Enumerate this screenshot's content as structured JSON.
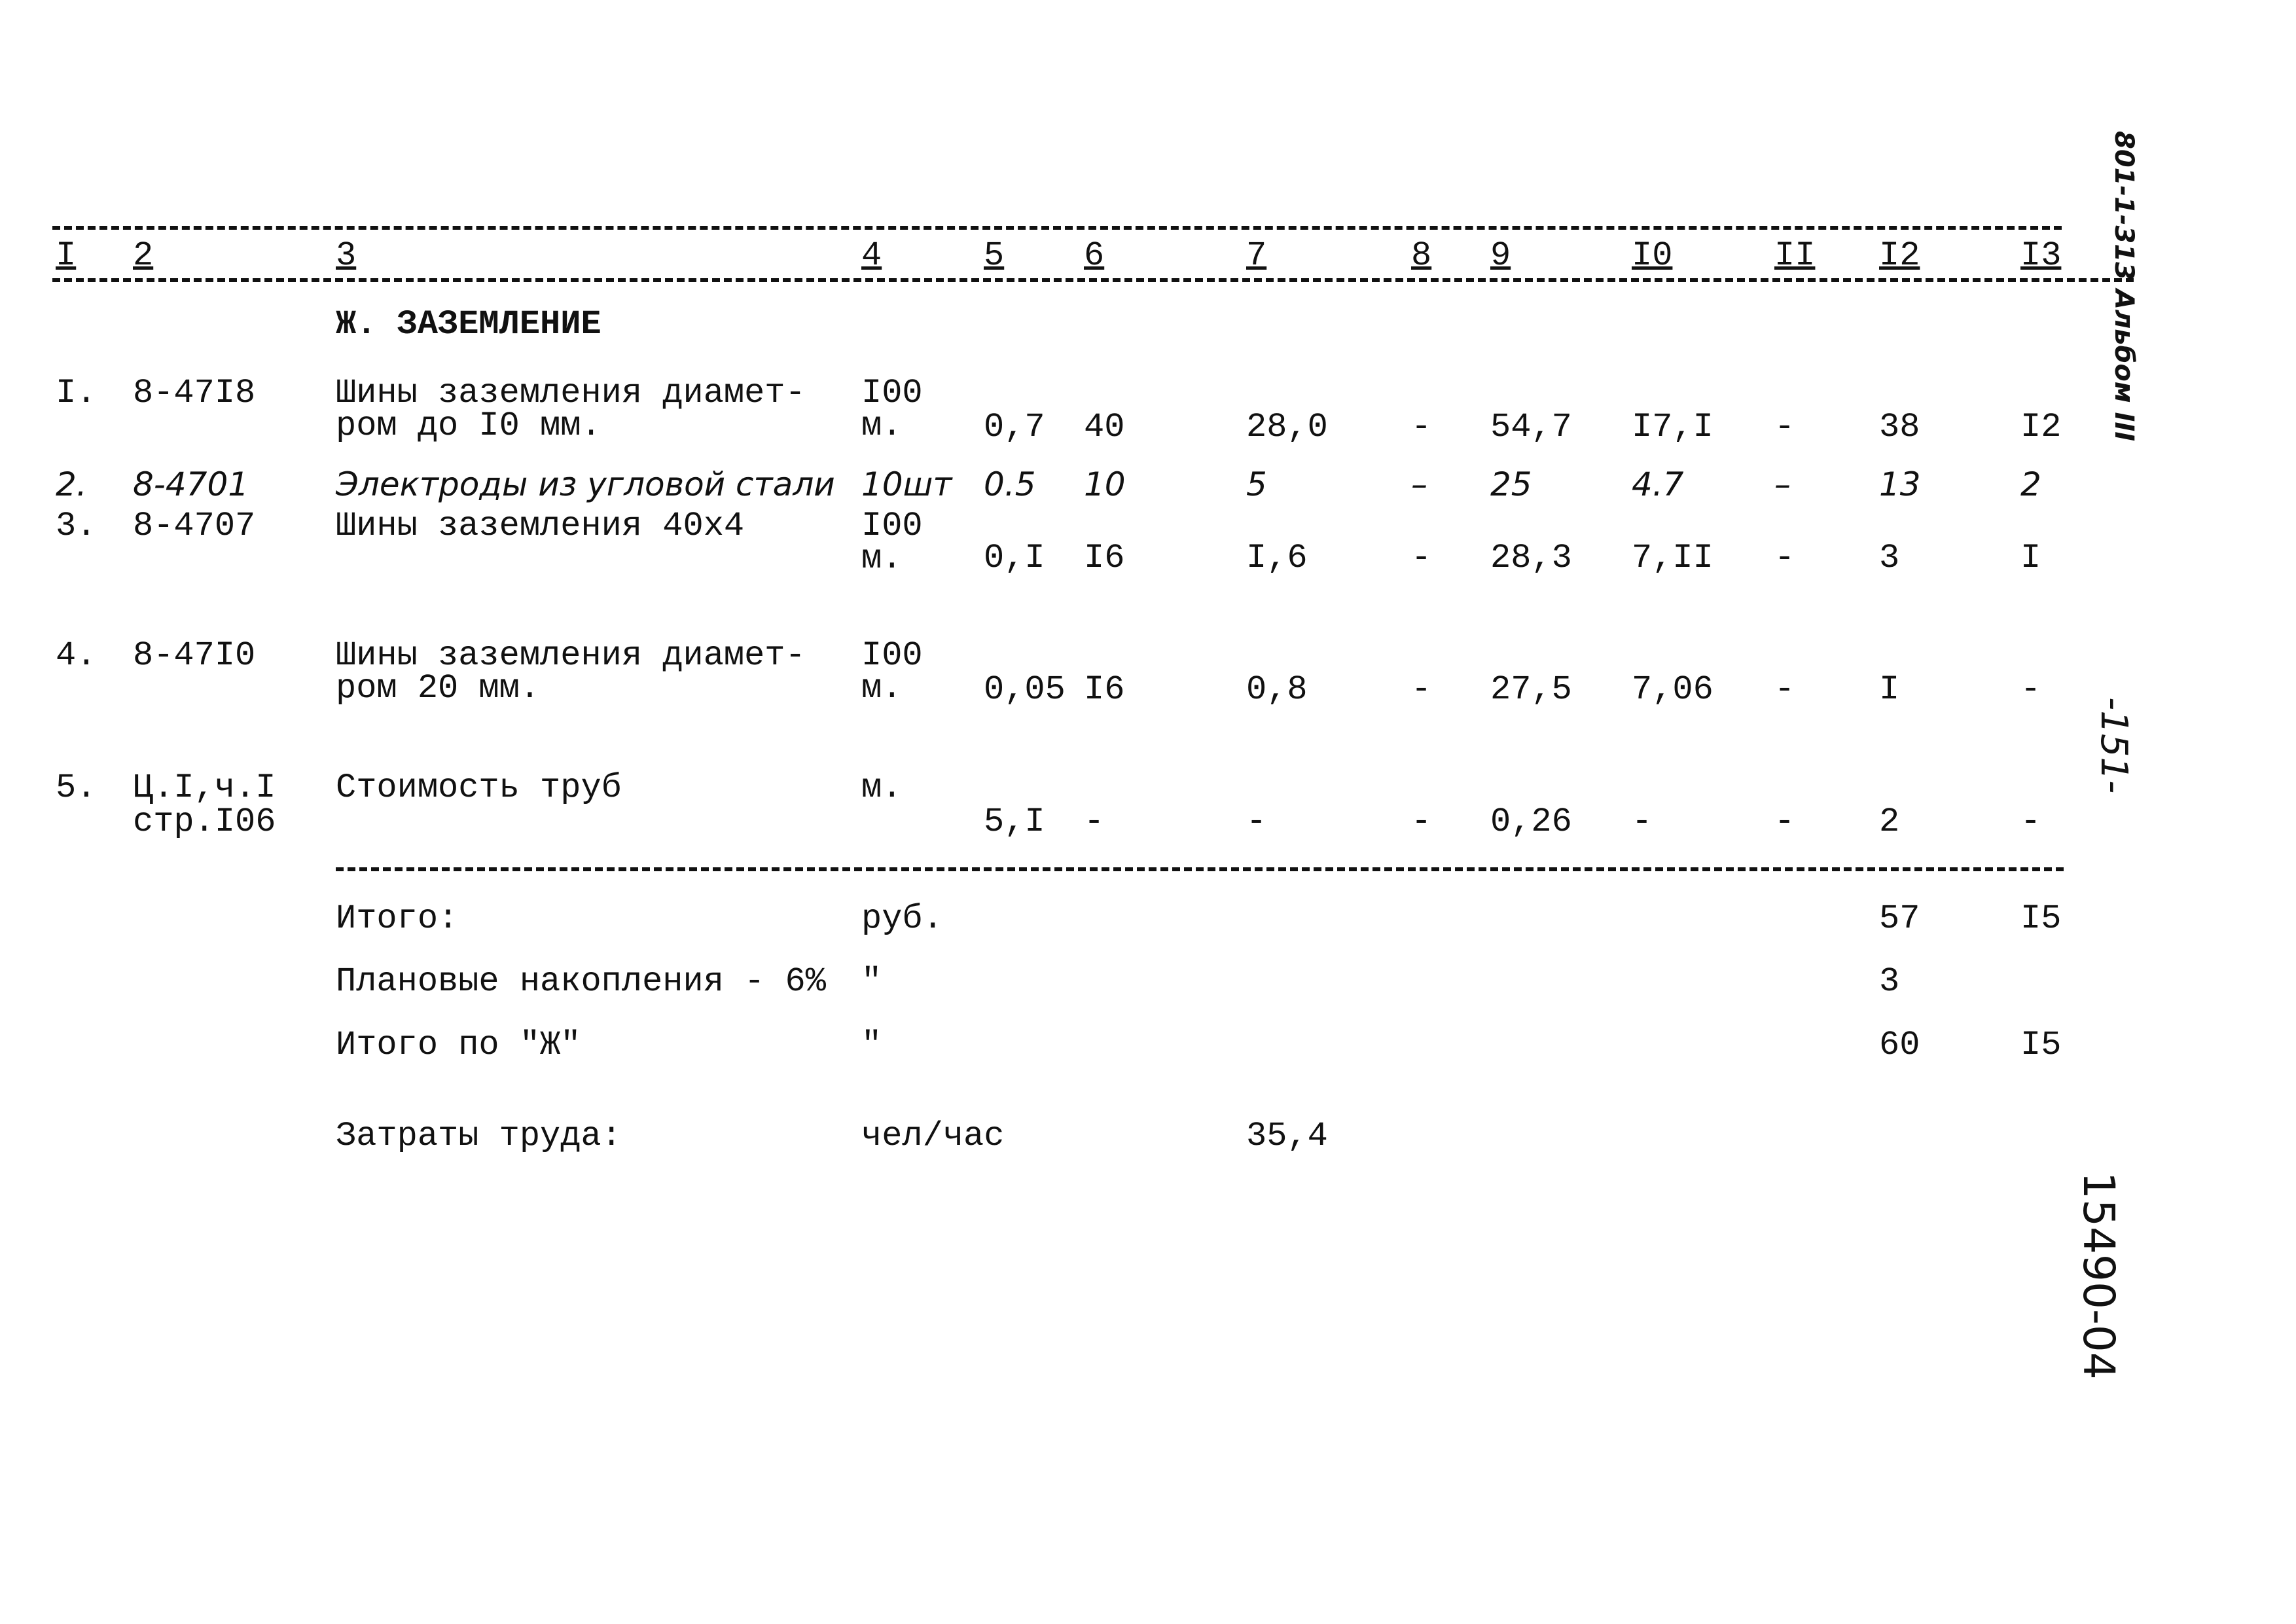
{
  "header_columns": [
    "I",
    "2",
    "3",
    "4",
    "5",
    "6",
    "7",
    "8",
    "9",
    "I0",
    "II",
    "I2",
    "I3"
  ],
  "section_title": "Ж. ЗАЗЕМЛЕНИЕ",
  "rows": [
    {
      "num": "I.",
      "code": "8-47I8",
      "name": [
        "Шины заземления диамет-",
        "ром до I0 мм."
      ],
      "unit": [
        "I00",
        "м."
      ],
      "c5": "0,7",
      "c6": "40",
      "c7": "28,0",
      "c8": "-",
      "c9": "54,7",
      "c10": "I7,I",
      "c11": "-",
      "c12": "38",
      "c13": "I2",
      "handwritten": false
    },
    {
      "num": "2.",
      "code": "8-4701",
      "name": [
        "Электроды из угловой стали"
      ],
      "unit": [
        "10шт"
      ],
      "c5": "0.5",
      "c6": "10",
      "c7": "5",
      "c8": "–",
      "c9": "25",
      "c10": "4.7",
      "c11": "–",
      "c12": "13",
      "c13": "2",
      "handwritten": true
    },
    {
      "num": "3.",
      "code": "8-4707",
      "name": [
        "Шины заземления 40х4"
      ],
      "unit": [
        "I00",
        "м."
      ],
      "c5": "0,I",
      "c6": "I6",
      "c7": "I,6",
      "c8": "-",
      "c9": "28,3",
      "c10": "7,II",
      "c11": "-",
      "c12": "3",
      "c13": "I",
      "handwritten": false
    },
    {
      "num": "4.",
      "code": "8-47I0",
      "name": [
        "Шины заземления диамет-",
        "ром 20 мм."
      ],
      "unit": [
        "I00",
        "м."
      ],
      "c5": "0,05",
      "c6": "I6",
      "c7": "0,8",
      "c8": "-",
      "c9": "27,5",
      "c10": "7,06",
      "c11": "-",
      "c12": "I",
      "c13": "-",
      "handwritten": false
    },
    {
      "num": "5.",
      "code": "Ц.I,ч.I стр.I06",
      "name": [
        "Стоимость труб"
      ],
      "unit": [
        "м."
      ],
      "c5": "5,I",
      "c6": "-",
      "c7": "-",
      "c8": "-",
      "c9": "0,26",
      "c10": "-",
      "c11": "-",
      "c12": "2",
      "c13": "-",
      "handwritten": false
    }
  ],
  "totals": [
    {
      "label": "Итого:",
      "unit": "руб.",
      "c12": "57",
      "c13": "I5"
    },
    {
      "label": "Плановые накопления - 6%",
      "unit": "\"",
      "c12": "3",
      "c13": ""
    },
    {
      "label": "Итого по \"Ж\"",
      "unit": "\"",
      "c12": "60",
      "c13": "I5"
    }
  ],
  "labor": {
    "label": "Затраты труда:",
    "unit": "чел/час",
    "c7": "35,4"
  },
  "margin": {
    "top_right": "801-1-313 Альбом III",
    "page_number": "-151-",
    "doc_number": "15490-04"
  }
}
